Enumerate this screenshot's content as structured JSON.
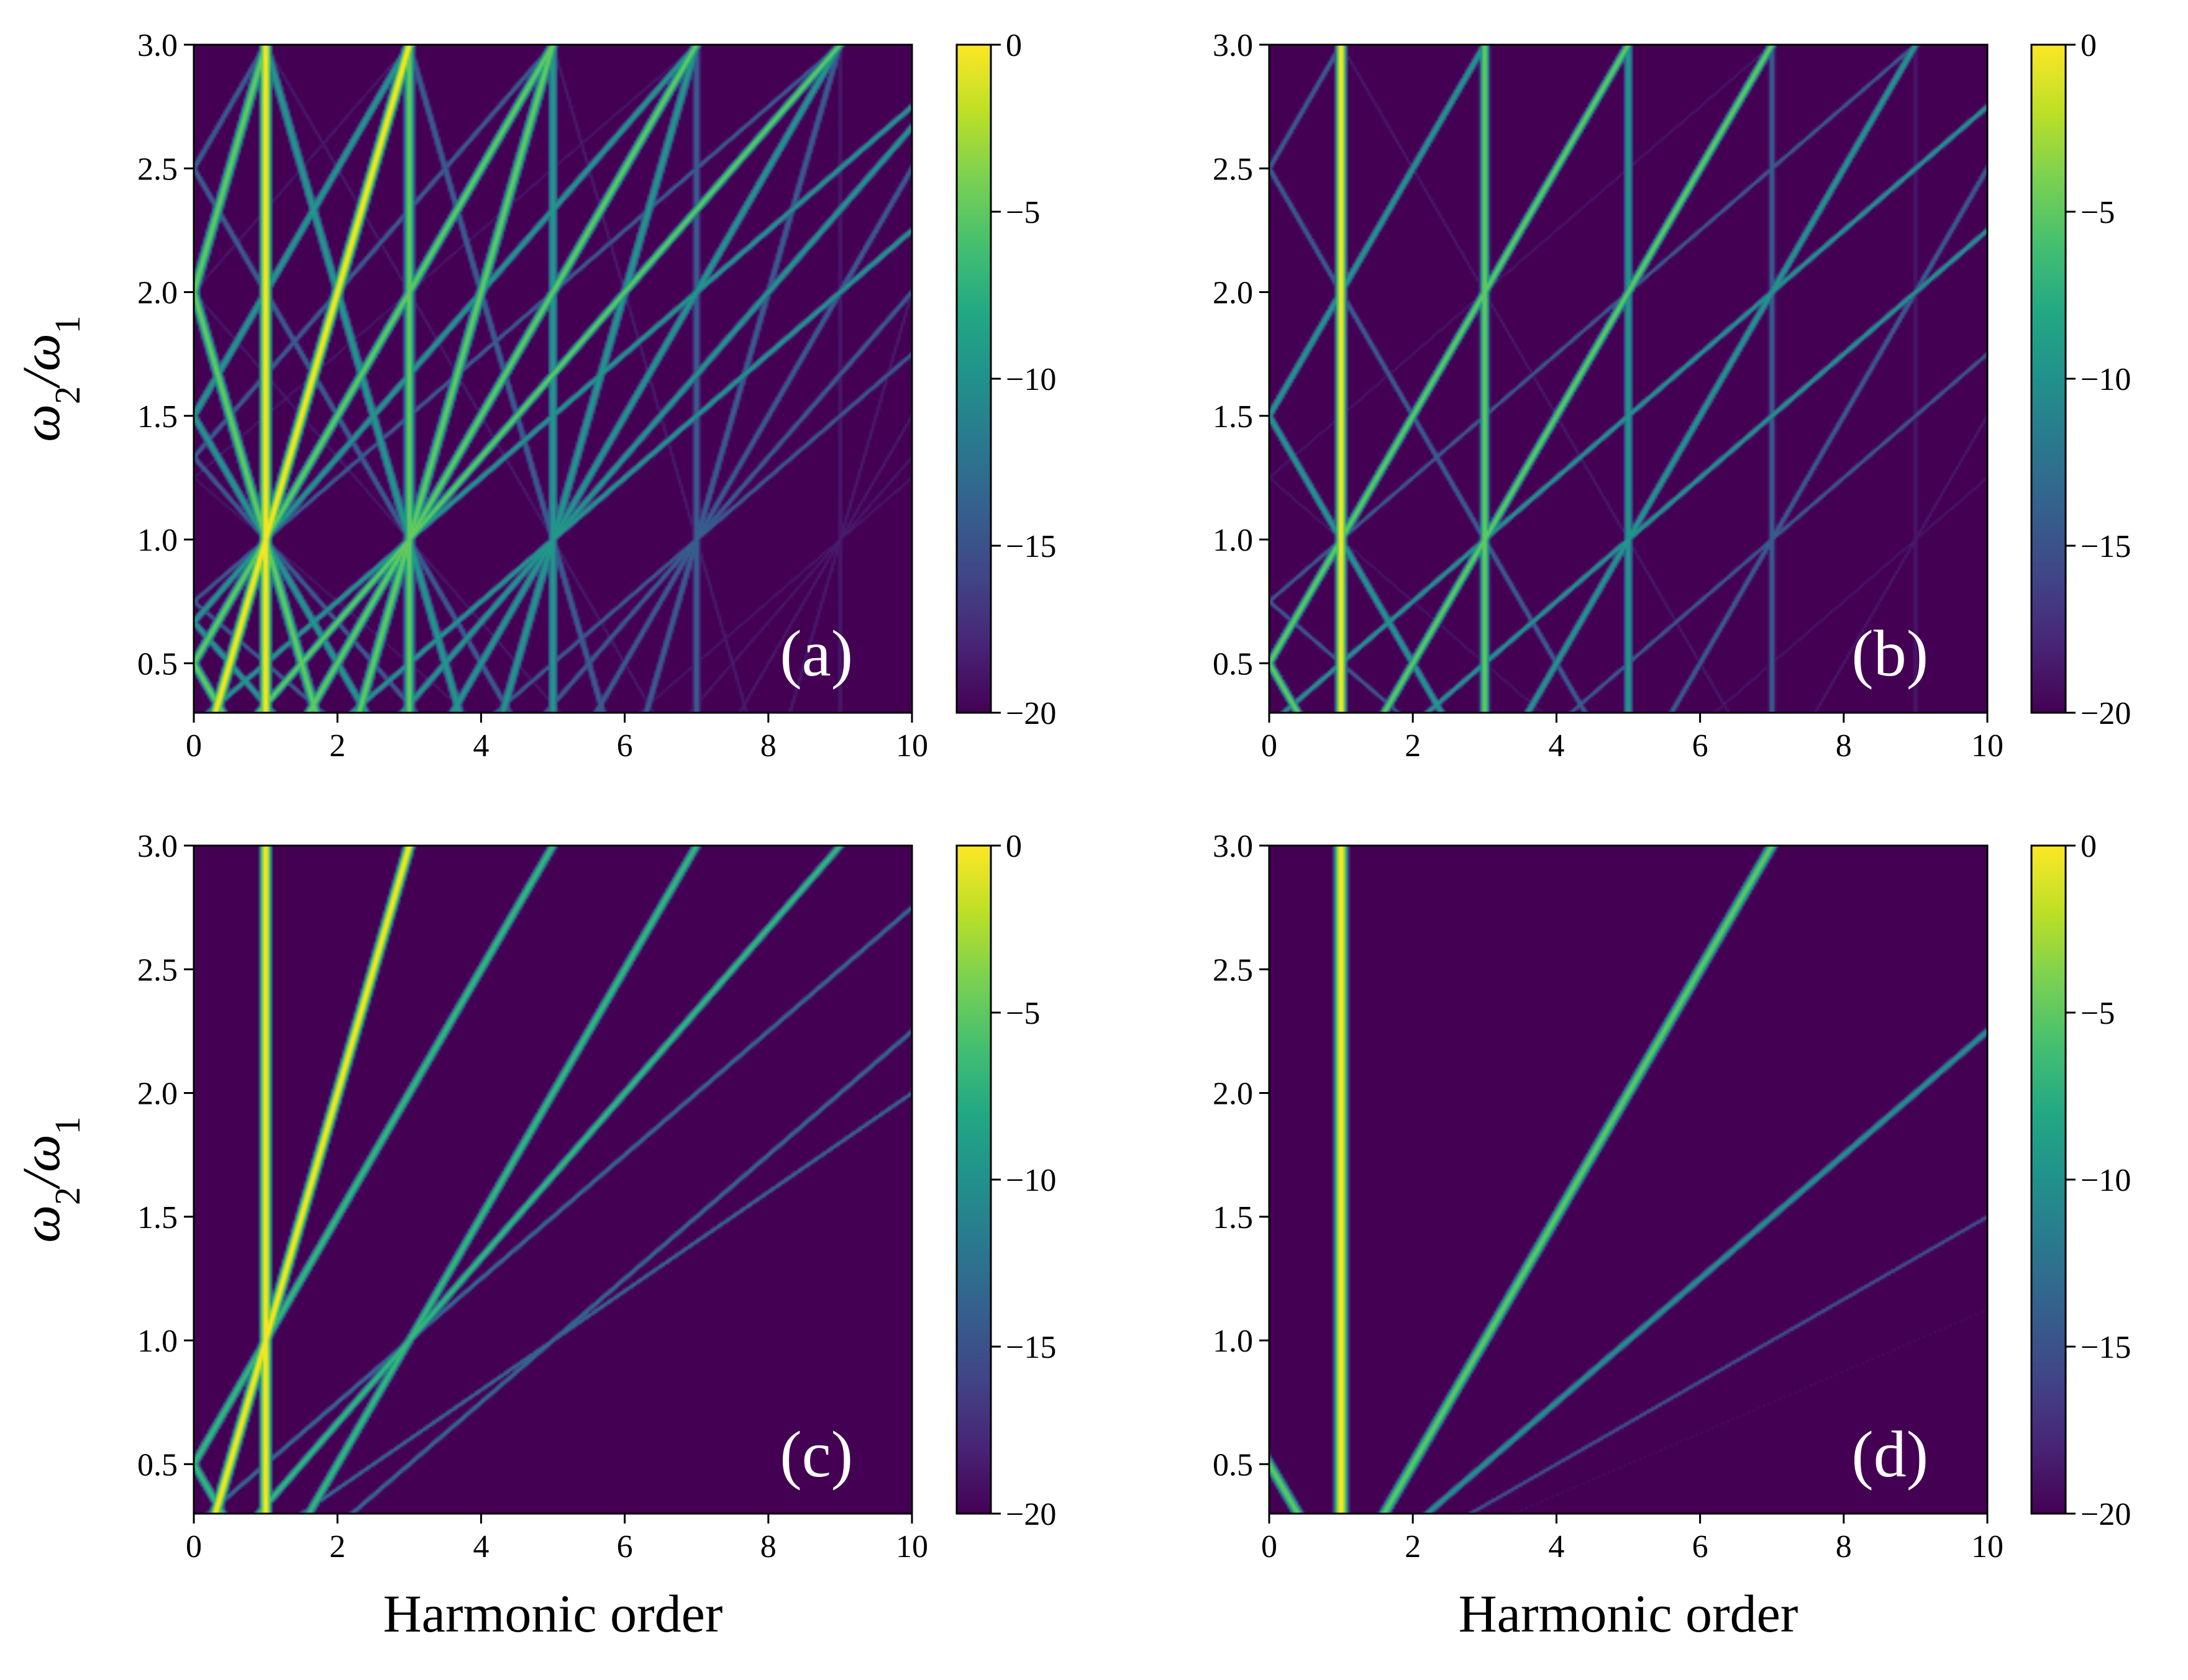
{
  "figure": {
    "colormap": "viridis",
    "colors": {
      "background": "#440154",
      "low": "#440154",
      "mid": "#21918c",
      "high": "#fde725"
    }
  },
  "chart_data": [
    {
      "id": "a",
      "type": "heatmap",
      "panel_label": "(a)",
      "xlabel": "",
      "ylabel": "ω2/ω1",
      "xlim": [
        0,
        10
      ],
      "ylim": [
        0.3,
        3.0
      ],
      "xticks": [
        "0",
        "2",
        "4",
        "6",
        "8",
        "10"
      ],
      "yticks": [
        "0.5",
        "1.0",
        "1.5",
        "2.0",
        "2.5",
        "3.0"
      ],
      "colorbar": {
        "range": [
          -20,
          0
        ],
        "ticks": [
          "0",
          "−5",
          "−10",
          "−15",
          "−20"
        ]
      },
      "n1_max": 9,
      "n2_max": 4,
      "decay": 2.3,
      "width": 0.06,
      "pattern": "all"
    },
    {
      "id": "b",
      "type": "heatmap",
      "panel_label": "(b)",
      "xlabel": "",
      "ylabel": "",
      "xlim": [
        0,
        10
      ],
      "ylim": [
        0.3,
        3.0
      ],
      "xticks": [
        "0",
        "2",
        "4",
        "6",
        "8",
        "10"
      ],
      "yticks": [
        "0.5",
        "1.0",
        "1.5",
        "2.0",
        "2.5",
        "3.0"
      ],
      "colorbar": {
        "range": [
          -20,
          0
        ],
        "ticks": [
          "0",
          "−5",
          "−10",
          "−15",
          "−20"
        ]
      },
      "n1_max": 9,
      "n2_max": 4,
      "decay": 2.3,
      "width": 0.055,
      "pattern": "odd-n1"
    },
    {
      "id": "c",
      "type": "heatmap",
      "panel_label": "(c)",
      "xlabel": "Harmonic order",
      "ylabel": "ω2/ω1",
      "xlim": [
        0,
        10
      ],
      "ylim": [
        0.3,
        3.0
      ],
      "xticks": [
        "0",
        "2",
        "4",
        "6",
        "8",
        "10"
      ],
      "yticks": [
        "0.5",
        "1.0",
        "1.5",
        "2.0",
        "2.5",
        "3.0"
      ],
      "colorbar": {
        "range": [
          -20,
          0
        ],
        "ticks": [
          "0",
          "−5",
          "−10",
          "−15",
          "−20"
        ]
      },
      "n1_max": 3,
      "n2_max": 5,
      "decay": 3.2,
      "width": 0.06,
      "pattern": "single-photon-w1"
    },
    {
      "id": "d",
      "type": "heatmap",
      "panel_label": "(d)",
      "xlabel": "Harmonic order",
      "ylabel": "",
      "xlim": [
        0,
        10
      ],
      "ylim": [
        0.3,
        3.0
      ],
      "xticks": [
        "0",
        "2",
        "4",
        "6",
        "8",
        "10"
      ],
      "yticks": [
        "0.5",
        "1.0",
        "1.5",
        "2.0",
        "2.5",
        "3.0"
      ],
      "colorbar": {
        "range": [
          -20,
          0
        ],
        "ticks": [
          "0",
          "−5",
          "−10",
          "−15",
          "−20"
        ]
      },
      "n1_max": 1,
      "n2_max": 9,
      "decay": 2.4,
      "width": 0.07,
      "pattern": "n1-one"
    }
  ]
}
